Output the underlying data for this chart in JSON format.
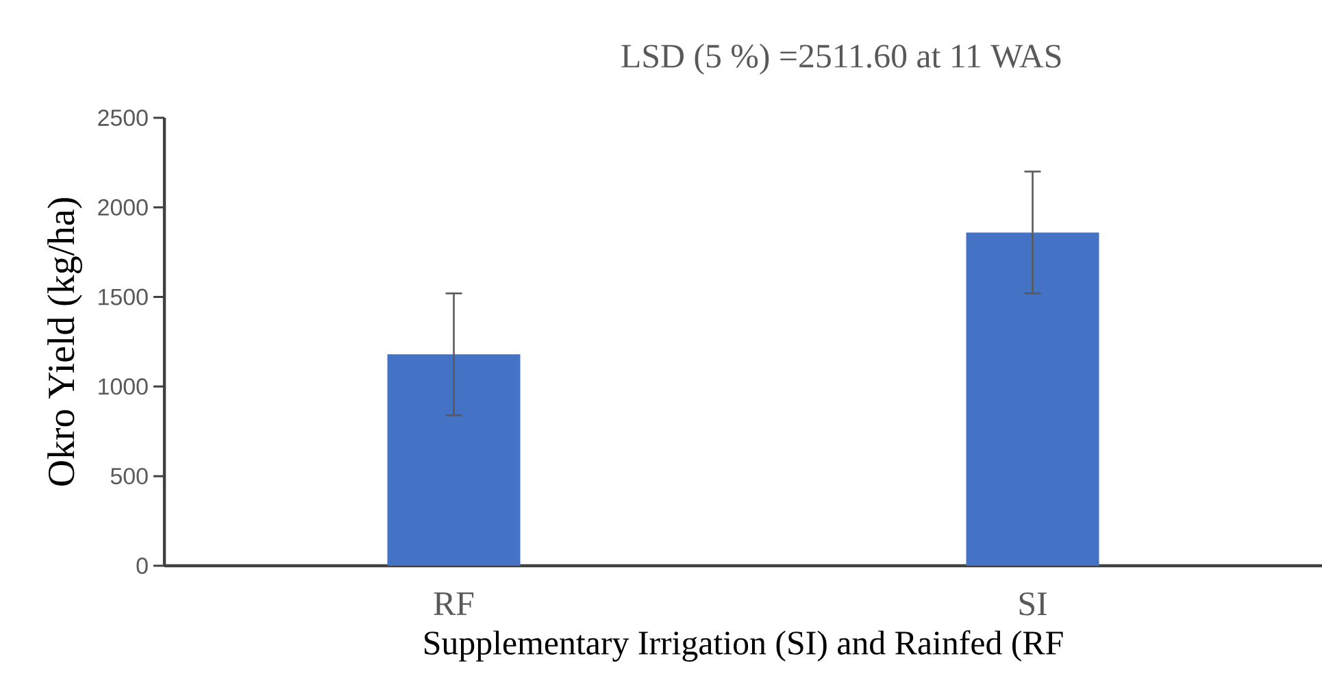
{
  "chart_data": {
    "type": "bar",
    "title": "LSD (5 %) =2511.60 at 11 WAS",
    "xlabel": "Supplementary Irrigation (SI) and Rainfed (RF",
    "ylabel": "Okro Yield (kg/ha)",
    "categories": [
      "RF",
      "SI"
    ],
    "values": [
      1180,
      1860
    ],
    "errors": [
      340,
      340
    ],
    "color": "#4472c4",
    "ylim": [
      0,
      2500
    ],
    "yticks": [
      0,
      500,
      1000,
      1500,
      2000,
      2500
    ],
    "grid": false
  }
}
